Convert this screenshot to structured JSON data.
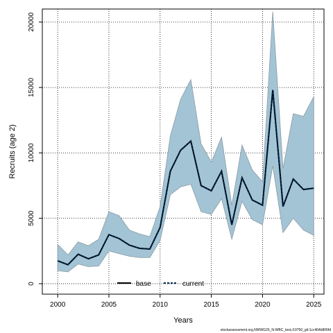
{
  "chart_data": {
    "type": "line",
    "title": "",
    "xlabel": "Years",
    "ylabel": "Recruits (age 2)",
    "xlim": [
      1998.5,
      2026
    ],
    "ylim": [
      -800,
      21000
    ],
    "x_ticks": [
      2000,
      2005,
      2010,
      2015,
      2020,
      2025
    ],
    "y_ticks": [
      0,
      5000,
      10000,
      15000,
      20000
    ],
    "grid": true,
    "grid_style": "dotted",
    "legend_placement": "bottom-center",
    "x": [
      2000,
      2001,
      2002,
      2003,
      2004,
      2005,
      2006,
      2007,
      2008,
      2009,
      2010,
      2011,
      2012,
      2013,
      2014,
      2015,
      2016,
      2017,
      2018,
      2019,
      2020,
      2021,
      2022,
      2023,
      2024,
      2025
    ],
    "band": {
      "lower": [
        1000,
        900,
        1500,
        1300,
        1350,
        2500,
        2300,
        2100,
        2000,
        2000,
        3300,
        6800,
        7400,
        7600,
        5500,
        5300,
        6500,
        3400,
        6300,
        4900,
        4500,
        9000,
        3900,
        5000,
        4100,
        3700
      ],
      "upper": [
        3000,
        2200,
        3200,
        2900,
        3400,
        5500,
        5200,
        4100,
        3800,
        3600,
        5900,
        11300,
        14100,
        15600,
        10700,
        9300,
        11200,
        6000,
        10600,
        8700,
        7800,
        20800,
        8800,
        13000,
        12800,
        14300
      ],
      "color": "#a3c4d4",
      "edge_color": "#8a9aa4"
    },
    "series": [
      {
        "name": "base",
        "color": "#000000",
        "style": "solid",
        "values": [
          1750,
          1450,
          2250,
          1900,
          2200,
          3750,
          3450,
          2950,
          2700,
          2650,
          4300,
          8600,
          10200,
          10900,
          7500,
          7100,
          8600,
          4500,
          8100,
          6400,
          6000,
          14800,
          5900,
          8000,
          7200,
          7300
        ]
      },
      {
        "name": "current",
        "color": "#00264d",
        "style": "dotted",
        "values": [
          1750,
          1450,
          2250,
          1900,
          2200,
          3750,
          3450,
          2950,
          2700,
          2650,
          4300,
          8600,
          10200,
          10900,
          7500,
          7100,
          8600,
          4500,
          8100,
          6400,
          6000,
          14800,
          5900,
          8000,
          7200,
          7300
        ]
      }
    ]
  },
  "footer": "stockassessment.org,NWWG26_N-WBC_test,r19750_git:1cc464b806fd"
}
